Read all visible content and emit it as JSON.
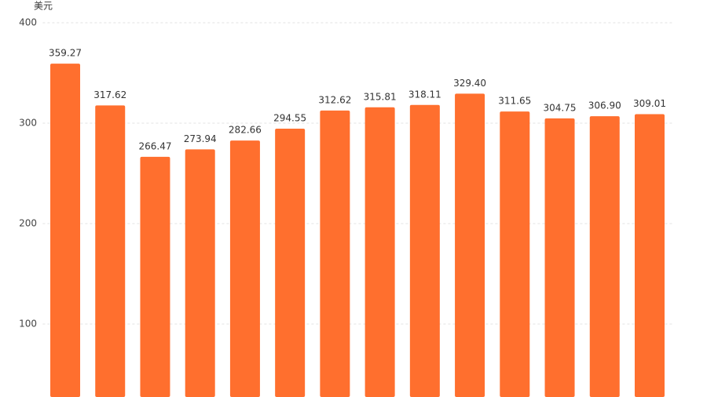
{
  "chart_data": {
    "type": "bar",
    "y_label": "美元",
    "values": [
      359.27,
      317.62,
      266.47,
      273.94,
      282.66,
      294.55,
      312.62,
      315.81,
      318.11,
      329.4,
      311.65,
      304.75,
      306.9,
      309.01
    ],
    "value_labels": [
      "359.27",
      "317.62",
      "266.47",
      "273.94",
      "282.66",
      "294.55",
      "312.62",
      "315.81",
      "318.11",
      "329.40",
      "311.65",
      "304.75",
      "306.90",
      "309.01"
    ],
    "color": "#ff6f2e",
    "ylim": [
      27.3,
      400
    ],
    "yticks": [
      100,
      200,
      300,
      400
    ],
    "grid": true
  }
}
